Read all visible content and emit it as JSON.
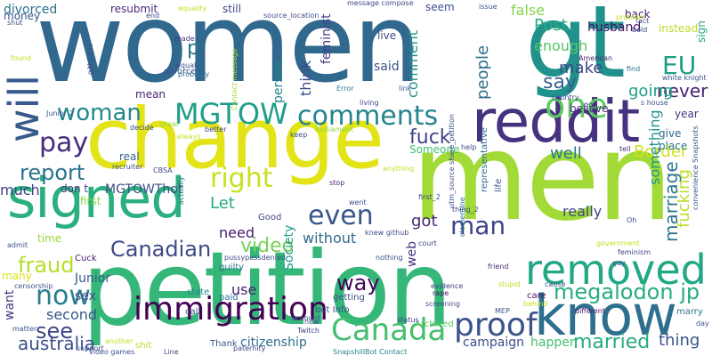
{
  "words": [
    {
      "text": "women",
      "color": "#31688e"
    },
    {
      "text": "gt",
      "color": "#21918c"
    },
    {
      "text": "change",
      "color": "#e2e418"
    },
    {
      "text": "men",
      "color": "#a2da37"
    },
    {
      "text": "petition",
      "color": "#35b779"
    },
    {
      "text": "signed",
      "color": "#2ab07f"
    },
    {
      "text": "reddit",
      "color": "#46327e"
    },
    {
      "text": "know",
      "color": "#2e6f8e"
    },
    {
      "text": "removed",
      "color": "#22a884"
    },
    {
      "text": "immigration",
      "color": "#440154"
    },
    {
      "text": "Canada",
      "color": "#44bf70"
    },
    {
      "text": "proof",
      "color": "#3b528b"
    },
    {
      "text": "MGTOW",
      "color": "#1f9e89"
    },
    {
      "text": "comments",
      "color": "#25848e"
    },
    {
      "text": "woman",
      "color": "#23898e"
    },
    {
      "text": "will",
      "color": "#375a8c"
    },
    {
      "text": "one",
      "color": "#5ec962"
    },
    {
      "text": "pay",
      "color": "#472d7b"
    },
    {
      "text": "right",
      "color": "#c8e020"
    },
    {
      "text": "even",
      "color": "#39568c"
    },
    {
      "text": "now",
      "color": "#287d8e"
    },
    {
      "text": "report",
      "color": "#2c728e"
    },
    {
      "text": "megalodon jp",
      "color": "#27ad81"
    },
    {
      "text": "EU",
      "color": "#1e9c89"
    },
    {
      "text": "say",
      "color": "#355f8d"
    },
    {
      "text": "make",
      "color": "#3e4a89"
    },
    {
      "text": "enough",
      "color": "#56c667"
    },
    {
      "text": "Post",
      "color": "#28ae80"
    },
    {
      "text": "never",
      "color": "#482173"
    },
    {
      "text": "people",
      "color": "#2d708e"
    },
    {
      "text": "going",
      "color": "#1fa187"
    },
    {
      "text": "fuck",
      "color": "#414487"
    },
    {
      "text": "Canadian",
      "color": "#3e4989"
    },
    {
      "text": "fraud",
      "color": "#b5de2b"
    },
    {
      "text": "video",
      "color": "#77d153"
    },
    {
      "text": "see",
      "color": "#3f4788"
    },
    {
      "text": "second",
      "color": "#38598c"
    },
    {
      "text": "australia",
      "color": "#3b518b"
    },
    {
      "text": "marriage",
      "color": "#2a768e"
    },
    {
      "text": "man",
      "color": "#404588"
    },
    {
      "text": "way",
      "color": "#450559"
    },
    {
      "text": "married",
      "color": "#25ab82"
    },
    {
      "text": "thing",
      "color": "#3a548c"
    },
    {
      "text": "Let",
      "color": "#26ad81"
    },
    {
      "text": "got",
      "color": "#482677"
    },
    {
      "text": "well",
      "color": "#287c8e"
    },
    {
      "text": "Border",
      "color": "#d0e11c"
    },
    {
      "text": "something",
      "color": "#1f968b"
    },
    {
      "text": "fucking",
      "color": "#bddf26"
    },
    {
      "text": "really",
      "color": "#3f4889"
    },
    {
      "text": "much",
      "color": "#423f85"
    },
    {
      "text": "need",
      "color": "#48186a"
    },
    {
      "text": "use",
      "color": "#482071"
    },
    {
      "text": "citizenship",
      "color": "#2f6c8e"
    },
    {
      "text": "campaign",
      "color": "#3d4d8a"
    },
    {
      "text": "happen",
      "color": "#43bf71"
    },
    {
      "text": "without",
      "color": "#2f6b8e"
    },
    {
      "text": "MGTOWThot",
      "color": "#3d4e8a"
    },
    {
      "text": "Junior",
      "color": "#355e8d"
    },
    {
      "text": "sex",
      "color": "#3e4c8a"
    },
    {
      "text": "want",
      "color": "#453781"
    },
    {
      "text": "said",
      "color": "#3a538b"
    },
    {
      "text": "comment",
      "color": "#20928c"
    },
    {
      "text": "think",
      "color": "#3d4d8a"
    },
    {
      "text": "person",
      "color": "#25858e"
    },
    {
      "text": "feminist",
      "color": "#423f85"
    },
    {
      "text": "false",
      "color": "#86d549"
    },
    {
      "text": "husband",
      "color": "#471063"
    },
    {
      "text": "Society",
      "color": "#1e9b8a"
    },
    {
      "text": "web",
      "color": "#46307e"
    },
    {
      "text": "give",
      "color": "#31688e"
    },
    {
      "text": "place",
      "color": "#2a788e"
    },
    {
      "text": "year",
      "color": "#453781"
    },
    {
      "text": "believe",
      "color": "#46327e"
    },
    {
      "text": "Someone",
      "color": "#43bf71"
    },
    {
      "text": "p",
      "color": "#2c738e"
    },
    {
      "text": "don t",
      "color": "#443983"
    },
    {
      "text": "first",
      "color": "#8fd744"
    },
    {
      "text": "real",
      "color": "#355f8d"
    },
    {
      "text": "mean",
      "color": "#482475"
    },
    {
      "text": "time",
      "color": "#9bd93c"
    },
    {
      "text": "many",
      "color": "#dde318"
    },
    {
      "text": "divorced",
      "color": "#2d718e"
    },
    {
      "text": "money",
      "color": "#3a548c"
    },
    {
      "text": "resubmit",
      "color": "#482878"
    },
    {
      "text": "still",
      "color": "#404588"
    },
    {
      "text": "seem",
      "color": "#3b528b"
    },
    {
      "text": "back",
      "color": "#481b6d"
    },
    {
      "text": "instead",
      "color": "#bade28"
    },
    {
      "text": "sign",
      "color": "#20a386"
    },
    {
      "text": "live",
      "color": "#3f4788"
    },
    {
      "text": "Archived",
      "color": "#5ec962"
    },
    {
      "text": "getting",
      "color": "#3b528b"
    },
    {
      "text": "representative",
      "color": "#2e6e8e"
    },
    {
      "text": "life",
      "color": "#3a548c"
    },
    {
      "text": "care",
      "color": "#471365"
    },
    {
      "text": "marry",
      "color": "#2a778e"
    },
    {
      "text": "bot Info",
      "color": "#3b518b"
    },
    {
      "text": "Thank",
      "color": "#39558c"
    },
    {
      "text": "shit",
      "color": "#b8de29"
    },
    {
      "text": "Good",
      "color": "#404688"
    },
    {
      "text": "guilty",
      "color": "#2b758e"
    },
    {
      "text": "paid",
      "color": "#2d708e"
    },
    {
      "text": "call",
      "color": "#3a538b"
    },
    {
      "text": "state",
      "color": "#23898e"
    },
    {
      "text": "Cuck",
      "color": "#482173"
    },
    {
      "text": "divorce",
      "color": "#38588c"
    },
    {
      "text": "probably",
      "color": "#2b748e"
    },
    {
      "text": "equal",
      "color": "#3e4a89"
    },
    {
      "text": "made",
      "color": "#46337f"
    },
    {
      "text": "Contact message",
      "color": "#a5db36"
    },
    {
      "text": "message compose",
      "color": "#3f4788"
    },
    {
      "text": "source_location",
      "color": "#3e4c8a"
    },
    {
      "text": "issue",
      "color": "#3b518b"
    },
    {
      "text": "end",
      "color": "#3f4889"
    },
    {
      "text": "equality",
      "color": "#c0df25"
    },
    {
      "text": "tell",
      "color": "#472c7a"
    },
    {
      "text": "help",
      "color": "#3d4e8a"
    },
    {
      "text": "stop",
      "color": "#481f70"
    },
    {
      "text": "court",
      "color": "#3c4f8a"
    },
    {
      "text": "evidence",
      "color": "#433e85"
    },
    {
      "text": "rape",
      "color": "#471164"
    },
    {
      "text": "status",
      "color": "#3f4788"
    },
    {
      "text": "friend",
      "color": "#482576"
    },
    {
      "text": "different",
      "color": "#481c6e"
    },
    {
      "text": "recruiter",
      "color": "#3b518b"
    },
    {
      "text": "decide",
      "color": "#3e4c8a"
    },
    {
      "text": "Junior 2",
      "color": "#3b528b"
    },
    {
      "text": "better",
      "color": "#404588"
    },
    {
      "text": "great",
      "color": "#8fd744"
    },
    {
      "text": "Twitch",
      "color": "#414287"
    },
    {
      "text": "SnapshillBot Contact",
      "color": "#26828e"
    },
    {
      "text": "video games",
      "color": "#3a548c"
    },
    {
      "text": "another",
      "color": "#c0df25"
    },
    {
      "text": "Line",
      "color": "#3e4a89"
    },
    {
      "text": "keep",
      "color": "#3b528b"
    },
    {
      "text": "actually",
      "color": "#2c738e"
    },
    {
      "text": "always",
      "color": "#c2df23"
    },
    {
      "text": "CBSA",
      "color": "#3e4c8a"
    },
    {
      "text": "new",
      "color": "#3b518b"
    },
    {
      "text": "country",
      "color": "#3f4788"
    },
    {
      "text": "go",
      "color": "#3e4a89"
    },
    {
      "text": "find",
      "color": "#2c738e"
    },
    {
      "text": "living",
      "color": "#3e4c8a"
    },
    {
      "text": "link",
      "color": "#3a548c"
    },
    {
      "text": "American",
      "color": "#482475"
    },
    {
      "text": "Parliament",
      "color": "#8fd744"
    },
    {
      "text": "cause",
      "color": "#3d4d8a"
    },
    {
      "text": "guy",
      "color": "#3b528b"
    },
    {
      "text": "feminism",
      "color": "#414487"
    },
    {
      "text": "Oh",
      "color": "#3e4a89"
    },
    {
      "text": "government",
      "color": "#c2df23"
    },
    {
      "text": "convenience Snapshots",
      "color": "#3b528b"
    },
    {
      "text": "first_2",
      "color": "#3f4788"
    },
    {
      "text": "white knight",
      "color": "#3a548c"
    },
    {
      "text": "s house",
      "color": "#3b528b"
    },
    {
      "text": "clementine",
      "color": "#2c728e"
    },
    {
      "text": "thing_2",
      "color": "#3e4a89"
    },
    {
      "text": "admit",
      "color": "#3b518b"
    },
    {
      "text": "support",
      "color": "#3a548c"
    },
    {
      "text": "Error",
      "color": "#2c738e"
    },
    {
      "text": "fact",
      "color": "#3e4c8a"
    },
    {
      "text": "bold",
      "color": "#3b528b"
    },
    {
      "text": "problem",
      "color": "#c0df25"
    },
    {
      "text": "github io",
      "color": "#3a548c"
    },
    {
      "text": "found",
      "color": "#c2df23"
    },
    {
      "text": "shut",
      "color": "#3b528b"
    },
    {
      "text": "utm_source share_petition",
      "color": "#3e4c8a"
    },
    {
      "text": "matter",
      "color": "#3a548c"
    },
    {
      "text": "censorship",
      "color": "#3b528b"
    },
    {
      "text": "pussypassdenied",
      "color": "#3e4a89"
    },
    {
      "text": "paternity",
      "color": "#3f4788"
    },
    {
      "text": "screening",
      "color": "#3e4c8a"
    },
    {
      "text": "MEP",
      "color": "#3b528b"
    },
    {
      "text": "behind",
      "color": "#c0df25"
    },
    {
      "text": "account",
      "color": "#3a548c"
    },
    {
      "text": "went",
      "color": "#3b518b"
    },
    {
      "text": "knew github",
      "color": "#3e4c8a"
    },
    {
      "text": "nothing",
      "color": "#3a548c"
    },
    {
      "text": "anything",
      "color": "#c2df23"
    },
    {
      "text": "stupid",
      "color": "#c0df25"
    },
    {
      "text": "day",
      "color": "#3b528b"
    }
  ]
}
